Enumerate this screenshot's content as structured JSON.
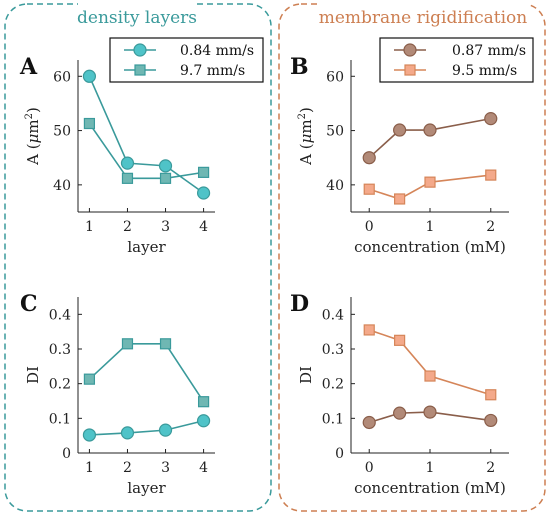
{
  "panel_groups": [
    {
      "title": "density layers",
      "color": "#3a9a9b"
    },
    {
      "title": "membrane rigidification",
      "color": "#cd7f52"
    }
  ],
  "legends": [
    {
      "items": [
        {
          "label": "0.84 mm/s"
        },
        {
          "label": "9.7 mm/s"
        }
      ]
    },
    {
      "items": [
        {
          "label": "0.87 mm/s"
        },
        {
          "label": "9.5 mm/s"
        }
      ]
    }
  ],
  "chart_data": [
    {
      "panel_label": "A",
      "type": "line",
      "xlabel": "layer",
      "ylabel_text": "A (",
      "ylabel_mu": "μ",
      "ylabel_unit": "m",
      "ylabel_sup": "2",
      "ylabel_close": ")",
      "x": [
        1,
        2,
        3,
        4
      ],
      "xlim": [
        0.7,
        4.3
      ],
      "xticks": [
        1,
        2,
        3,
        4
      ],
      "ylim": [
        35,
        63
      ],
      "yticks": [
        40,
        50,
        60
      ],
      "series": [
        {
          "name": "0.84 mm/s",
          "marker": "circle",
          "color": "#3a9a9b",
          "fill": "#4fc3c8",
          "values": [
            60,
            44,
            43.5,
            38.5
          ]
        },
        {
          "name": "9.7 mm/s",
          "marker": "square",
          "color": "#3a9a9b",
          "fill": "#6fb7b3",
          "values": [
            51.3,
            41.2,
            41.2,
            42.3
          ]
        }
      ]
    },
    {
      "panel_label": "B",
      "type": "line",
      "xlabel": "concentration (mM)",
      "ylabel_text": "A (",
      "ylabel_mu": "μ",
      "ylabel_unit": "m",
      "ylabel_sup": "2",
      "ylabel_close": ")",
      "x": [
        0,
        0.5,
        1,
        2
      ],
      "xlim": [
        -0.3,
        2.3
      ],
      "xticks": [
        0,
        1,
        2
      ],
      "ylim": [
        35,
        63
      ],
      "yticks": [
        40,
        50,
        60
      ],
      "series": [
        {
          "name": "0.87 mm/s",
          "marker": "circle",
          "color": "#8a5e4a",
          "fill": "#b28a78",
          "values": [
            45,
            50.1,
            50.1,
            52.2
          ]
        },
        {
          "name": "9.5 mm/s",
          "marker": "square",
          "color": "#d58559",
          "fill": "#f4a98a",
          "values": [
            39.2,
            37.4,
            40.5,
            41.8
          ]
        }
      ]
    },
    {
      "panel_label": "C",
      "type": "line",
      "xlabel": "layer",
      "ylabel_text": "DI",
      "x": [
        1,
        2,
        3,
        4
      ],
      "xlim": [
        0.7,
        4.3
      ],
      "xticks": [
        1,
        2,
        3,
        4
      ],
      "ylim": [
        0,
        0.45
      ],
      "yticks": [
        0,
        0.1,
        0.2,
        0.3,
        0.4
      ],
      "yticklabels": [
        "0",
        "0.1",
        "0.2",
        "0.3",
        "0.4"
      ],
      "series": [
        {
          "name": "0.84 mm/s",
          "marker": "circle",
          "color": "#3a9a9b",
          "fill": "#4fc3c8",
          "values": [
            0.052,
            0.058,
            0.066,
            0.093
          ]
        },
        {
          "name": "9.7 mm/s",
          "marker": "square",
          "color": "#3a9a9b",
          "fill": "#6fb7b3",
          "values": [
            0.213,
            0.315,
            0.315,
            0.148
          ]
        }
      ]
    },
    {
      "panel_label": "D",
      "type": "line",
      "xlabel": "concentration (mM)",
      "ylabel_text": "DI",
      "x": [
        0,
        0.5,
        1,
        2
      ],
      "xlim": [
        -0.3,
        2.3
      ],
      "xticks": [
        0,
        1,
        2
      ],
      "ylim": [
        0,
        0.45
      ],
      "yticks": [
        0,
        0.1,
        0.2,
        0.3,
        0.4
      ],
      "yticklabels": [
        "0",
        "0.1",
        "0.2",
        "0.3",
        "0.4"
      ],
      "series": [
        {
          "name": "0.87 mm/s",
          "marker": "circle",
          "color": "#8a5e4a",
          "fill": "#b28a78",
          "values": [
            0.088,
            0.115,
            0.118,
            0.094
          ]
        },
        {
          "name": "9.5 mm/s",
          "marker": "square",
          "color": "#d58559",
          "fill": "#f4a98a",
          "values": [
            0.355,
            0.325,
            0.222,
            0.168
          ]
        }
      ]
    }
  ]
}
